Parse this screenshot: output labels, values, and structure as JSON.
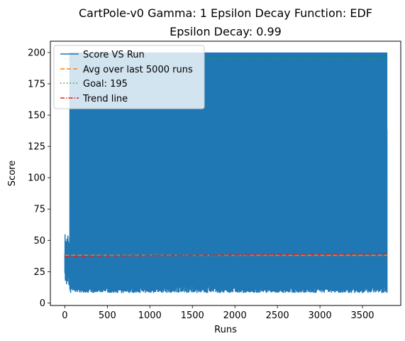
{
  "chart_data": {
    "type": "line",
    "title": "CartPole-v0 Gamma: 1 Epsilon Decay Function: EDF",
    "subtitle": "Epsilon Decay: 0.99",
    "xlabel": "Runs",
    "ylabel": "Score",
    "xlim": [
      -170,
      3950
    ],
    "ylim": [
      -2,
      209
    ],
    "xticks": [
      "0",
      "500",
      "1000",
      "1500",
      "2000",
      "2500",
      "3000",
      "3500"
    ],
    "yticks": [
      "0",
      "25",
      "50",
      "75",
      "100",
      "125",
      "150",
      "175",
      "200"
    ],
    "xtick_values": [
      0,
      500,
      1000,
      1500,
      2000,
      2500,
      3000,
      3500
    ],
    "ytick_values": [
      0,
      25,
      50,
      75,
      100,
      125,
      150,
      175,
      200
    ],
    "legend_placement": "top-left",
    "grid": false,
    "n_runs": 3790,
    "series": [
      {
        "name": "Score VS Run",
        "style": "solid",
        "color": "#1f77b4",
        "score_range": [
          8,
          200
        ],
        "typical_upper": 200,
        "typical_lower": 8
      },
      {
        "name": "Avg over last 5000 runs",
        "style": "dashed",
        "color": "#ff7f0e",
        "x": [
          0,
          3790
        ],
        "y": [
          38,
          38
        ]
      },
      {
        "name": "Goal: 195",
        "style": "dotted",
        "color": "#2ca02c",
        "x": [
          0,
          3790
        ],
        "y": [
          195,
          195
        ]
      },
      {
        "name": "Trend line",
        "style": "dashdot",
        "color": "#d62728",
        "x": [
          0,
          3790
        ],
        "y": [
          37.2,
          39.4
        ]
      }
    ]
  }
}
